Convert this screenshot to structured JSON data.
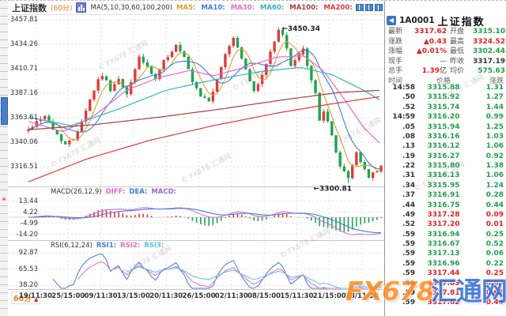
{
  "header": {
    "title": "上证指数",
    "period": "(60分)",
    "ma_group": "MA(5,10,30,60,100,200)",
    "ma_items": [
      {
        "label": "MA5:",
        "color": "#d9a23c"
      },
      {
        "label": "MA10:",
        "color": "#3f7ed9"
      },
      {
        "label": "MA30:",
        "color": "#e46bc8"
      },
      {
        "label": "MA60:",
        "color": "#35b2c9"
      },
      {
        "label": "MA100:",
        "color": "#a5433a"
      },
      {
        "label": "MA200:",
        "color": "#e23a3a"
      }
    ]
  },
  "quote": {
    "code": "1A0001",
    "name": "上证指数",
    "rows": [
      [
        {
          "l": "最新",
          "v": "3317.62",
          "c": "up"
        },
        {
          "l": "开盘",
          "v": "3315.10",
          "c": "down"
        }
      ],
      [
        {
          "l": "涨跌",
          "v": "▲0.43",
          "c": "up"
        },
        {
          "l": "最高",
          "v": "3324.52",
          "c": "up"
        }
      ],
      [
        {
          "l": "涨幅",
          "v": "▲0.01%",
          "c": "up"
        },
        {
          "l": "最低",
          "v": "3302.44",
          "c": "down"
        }
      ],
      [
        {
          "l": "现手",
          "v": "—",
          "c": "flat"
        },
        {
          "l": "昨收",
          "v": "3317.19",
          "c": "dark"
        }
      ],
      [
        {
          "l": "总手",
          "v": "1.39",
          "suffix": "亿",
          "c": "up"
        },
        {
          "l": "均价",
          "v": "575.63",
          "c": "down"
        }
      ]
    ]
  },
  "tape": {
    "headers": [
      "时间",
      "价格",
      "涨跌"
    ],
    "rows": [
      [
        "14:58",
        "3315.88",
        "1.31",
        "down"
      ],
      [
        ".50",
        "3315.92",
        "1.27",
        "down"
      ],
      [
        ".52",
        "3315.74",
        "1.44",
        "down"
      ],
      [
        "14:59",
        "3316.20",
        "0.99",
        "down"
      ],
      [
        ".05",
        "3315.94",
        "1.25",
        "down"
      ],
      [
        ".08",
        "3316.16",
        "1.03",
        "down"
      ],
      [
        ".13",
        "3316.12",
        "1.06",
        "down"
      ],
      [
        ".19",
        "3316.27",
        "0.92",
        "down"
      ],
      [
        ".22",
        "3315.80",
        "1.38",
        "down"
      ],
      [
        ".31",
        "3316.13",
        "1.06",
        "down"
      ],
      [
        ".34",
        "3315.95",
        "1.24",
        "down"
      ],
      [
        ".37",
        "3316.91",
        "0.28",
        "down"
      ],
      [
        ".44",
        "3316.75",
        "0.44",
        "down"
      ],
      [
        ".49",
        "3317.28",
        "0.09",
        "up"
      ],
      [
        ".52",
        "3317.20",
        "0.01",
        "up"
      ],
      [
        ".59",
        "3316.94",
        "0.25",
        "down"
      ],
      [
        ".59",
        "3316.67",
        "0.52",
        "down"
      ],
      [
        ".59",
        "3317.13",
        "0.06",
        "down"
      ],
      [
        ".59",
        "3316.96",
        "0.22",
        "down"
      ],
      [
        ".59",
        "3317.44",
        "0.25",
        "up"
      ],
      [
        ".59",
        "3317.83",
        "0.64",
        "up"
      ],
      [
        ".59",
        "3317.81",
        "0.62",
        "up"
      ],
      [
        ".59",
        "3317.62",
        "0.43",
        "up"
      ]
    ]
  },
  "time_axis": {
    "period": "60分",
    "labels": [
      "19/11:30",
      "25/15:00",
      "09/11:30",
      "13/15:00",
      "20/11:30",
      "26/15:00",
      "02/11:30",
      "08/15:00",
      "15/11:30",
      "21/15:00",
      "28/11:30"
    ]
  },
  "chart_data": {
    "type": "candlestick",
    "symbol": "上证指数",
    "interval": "60分",
    "price_ticks": [
      3457.81,
      3434.26,
      3410.71,
      3387.16,
      3363.61,
      3340.06,
      3316.51
    ],
    "x_labels": [
      "19/11:30",
      "25/15:00",
      "09/11:30",
      "13/15:00",
      "20/11:30",
      "26/15:00",
      "02/11:30",
      "08/15:00",
      "15/11:30",
      "21/15:00",
      "28/11:30"
    ],
    "bars": 87,
    "close_anchors": [
      [
        0,
        3352
      ],
      [
        2,
        3360
      ],
      [
        4,
        3366
      ],
      [
        6,
        3352
      ],
      [
        9,
        3338
      ],
      [
        11,
        3343
      ],
      [
        13,
        3361
      ],
      [
        15,
        3381
      ],
      [
        17,
        3400
      ],
      [
        18,
        3405
      ],
      [
        20,
        3391
      ],
      [
        22,
        3400
      ],
      [
        24,
        3385
      ],
      [
        26,
        3410
      ],
      [
        27,
        3423
      ],
      [
        29,
        3411
      ],
      [
        31,
        3400
      ],
      [
        33,
        3418
      ],
      [
        35,
        3428
      ],
      [
        36,
        3433
      ],
      [
        38,
        3421
      ],
      [
        40,
        3397
      ],
      [
        42,
        3384
      ],
      [
        44,
        3380
      ],
      [
        46,
        3399
      ],
      [
        48,
        3425
      ],
      [
        50,
        3441
      ],
      [
        52,
        3421
      ],
      [
        54,
        3398
      ],
      [
        55,
        3390
      ],
      [
        57,
        3404
      ],
      [
        59,
        3427
      ],
      [
        61,
        3447
      ],
      [
        62,
        3443
      ],
      [
        64,
        3415
      ],
      [
        66,
        3423
      ],
      [
        67,
        3429
      ],
      [
        69,
        3399
      ],
      [
        70,
        3387
      ],
      [
        71,
        3362
      ],
      [
        72,
        3371
      ],
      [
        74,
        3346
      ],
      [
        76,
        3317
      ],
      [
        78,
        3305
      ],
      [
        80,
        3331
      ],
      [
        81,
        3321
      ],
      [
        83,
        3307
      ],
      [
        85,
        3312
      ],
      [
        86,
        3317.62
      ]
    ],
    "high_annotation": {
      "bar": 61,
      "value": 3450.34,
      "text": "←3450.34"
    },
    "low_annotation": {
      "bar": 78,
      "value": 3300.81,
      "text": "←3300.81"
    },
    "up_color": "#e23a3a",
    "down_color": "#1ea54e",
    "ma_lines": [
      {
        "name": "MA30",
        "color": "#e46bc8",
        "points": [
          [
            36,
            3360
          ],
          [
            80,
            3350
          ],
          [
            120,
            3366
          ],
          [
            160,
            3390
          ],
          [
            200,
            3402
          ],
          [
            240,
            3409
          ],
          [
            270,
            3404
          ],
          [
            310,
            3412
          ],
          [
            350,
            3422
          ],
          [
            385,
            3423
          ],
          [
            410,
            3408
          ],
          [
            435,
            3382
          ],
          [
            460,
            3354
          ],
          [
            482,
            3338
          ]
        ]
      },
      {
        "name": "MA60",
        "color": "#35b2c9",
        "points": [
          [
            36,
            3364
          ],
          [
            90,
            3356
          ],
          [
            150,
            3372
          ],
          [
            210,
            3390
          ],
          [
            270,
            3400
          ],
          [
            330,
            3408
          ],
          [
            380,
            3412
          ],
          [
            420,
            3405
          ],
          [
            455,
            3392
          ],
          [
            482,
            3380
          ]
        ]
      },
      {
        "name": "MA100",
        "color": "#a5433a",
        "points": [
          [
            36,
            3352
          ],
          [
            120,
            3357
          ],
          [
            200,
            3364
          ],
          [
            280,
            3372
          ],
          [
            360,
            3381
          ],
          [
            430,
            3388
          ],
          [
            482,
            3390
          ]
        ]
      },
      {
        "name": "MA200",
        "color": "#e23a3a",
        "points": [
          [
            36,
            3302
          ],
          [
            110,
            3324
          ],
          [
            190,
            3342
          ],
          [
            270,
            3356
          ],
          [
            350,
            3368
          ],
          [
            420,
            3377
          ],
          [
            482,
            3384
          ]
        ]
      }
    ],
    "macd": {
      "label": "MACD(26,12,9)",
      "ticks": [
        13.44,
        4.22,
        -4.99,
        -14.2
      ],
      "series_labels": [
        {
          "t": "DIFF:",
          "c": "#e46bc8"
        },
        {
          "t": "DEA:",
          "c": "#3f7ed9"
        },
        {
          "t": "MACD:",
          "c": "#9966cc"
        }
      ]
    },
    "rsi": {
      "label": "RSI(6,12,24)",
      "ticks": [
        92.87,
        65.53,
        38.2
      ],
      "series_labels": [
        {
          "t": "RSI1:",
          "c": "#3f7ed9"
        },
        {
          "t": "RSI2:",
          "c": "#e46bc8"
        },
        {
          "t": "RSI3:",
          "c": "#58c0e8"
        }
      ]
    }
  },
  "watermark": {
    "small": "© FX678 汇通网",
    "big_left": "FX678",
    "big_right": "汇通网"
  }
}
